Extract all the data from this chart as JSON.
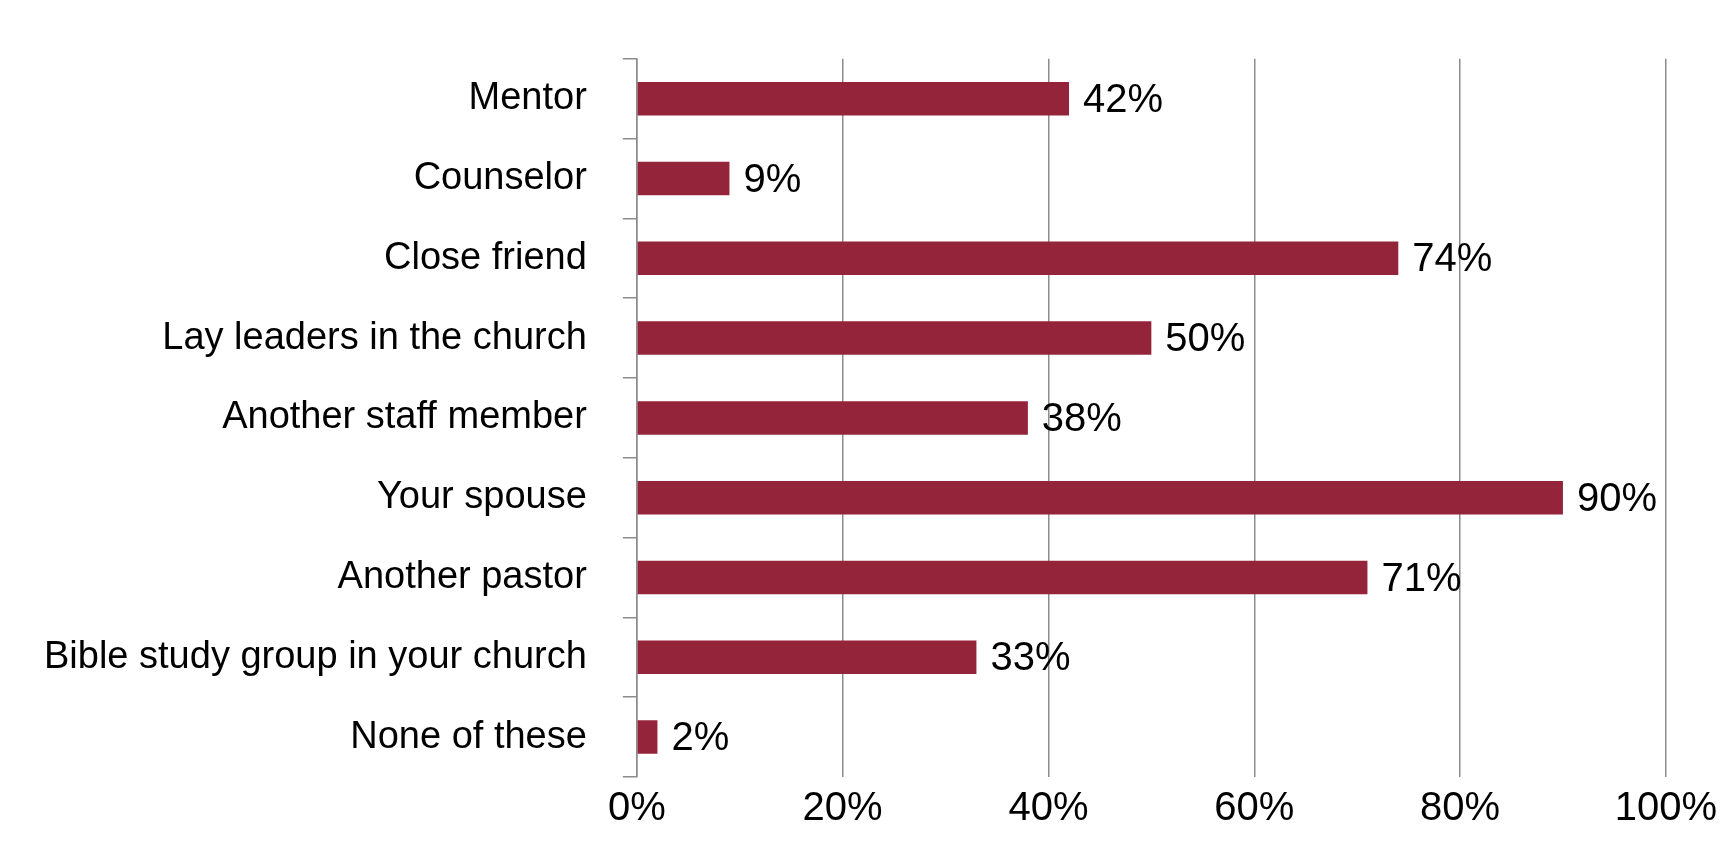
{
  "chart_data": {
    "type": "bar",
    "orientation": "horizontal",
    "categories": [
      "Mentor",
      "Counselor",
      "Close friend",
      "Lay leaders in the church",
      "Another staff member",
      "Your spouse",
      "Another pastor",
      "Bible study group in your church",
      "None of these"
    ],
    "values": [
      42,
      9,
      74,
      50,
      38,
      90,
      71,
      33,
      2
    ],
    "value_labels": [
      "42%",
      "9%",
      "74%",
      "50%",
      "38%",
      "90%",
      "71%",
      "33%",
      "2%"
    ],
    "color": "#93243a",
    "xlim": [
      0,
      100
    ],
    "xticks": [
      {
        "value": 0,
        "label": "0%"
      },
      {
        "value": 20,
        "label": "20%"
      },
      {
        "value": 40,
        "label": "40%"
      },
      {
        "value": 60,
        "label": "60%"
      },
      {
        "value": 80,
        "label": "80%"
      },
      {
        "value": 100,
        "label": "100%"
      }
    ],
    "grid": "x",
    "legend": false
  }
}
